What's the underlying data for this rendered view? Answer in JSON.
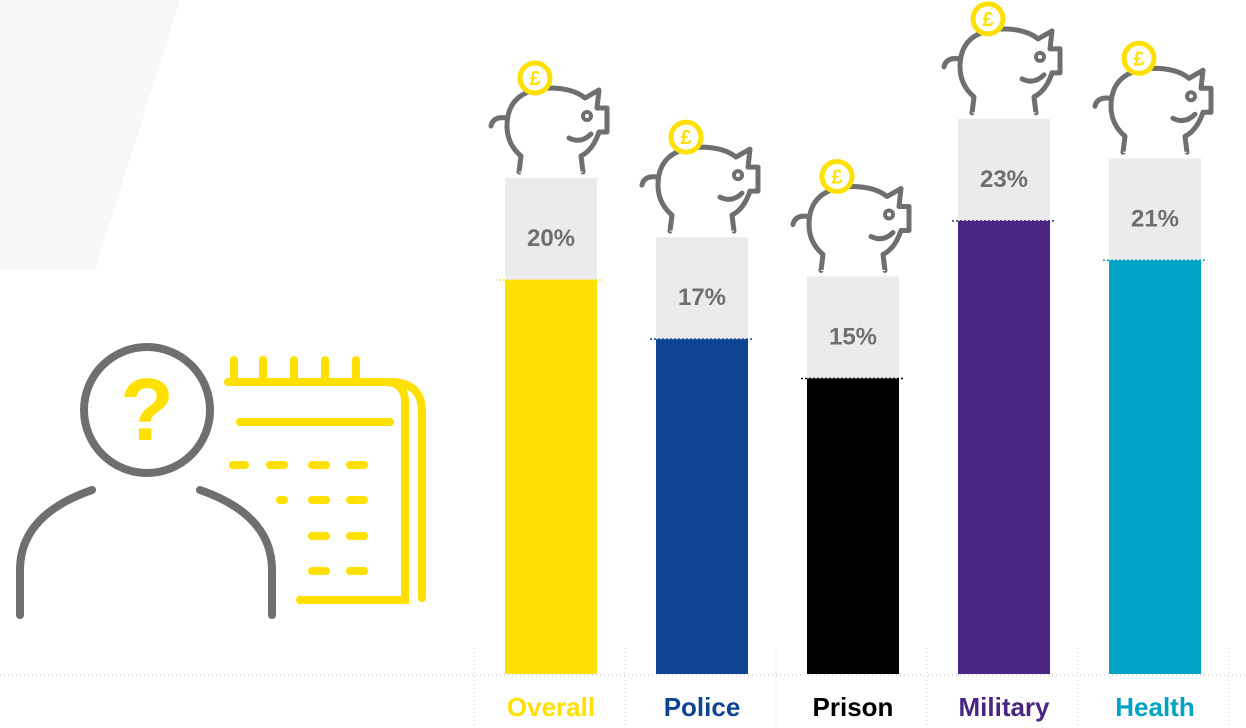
{
  "chart_data": {
    "type": "bar",
    "categories": [
      "Overall",
      "Police",
      "Prison",
      "Military",
      "Health"
    ],
    "values": [
      20,
      17,
      15,
      23,
      21
    ],
    "value_labels": [
      "20%",
      "17%",
      "15%",
      "23%",
      "21%"
    ],
    "colors": [
      "#FFE000",
      "#0F4492",
      "#000000",
      "#4A2683",
      "#00A3C4"
    ],
    "label_colors": [
      "#FFE000",
      "#0F4492",
      "#000000",
      "#4A2683",
      "#00A3C4"
    ],
    "grid": false
  },
  "decor": {
    "coin_symbol": "£",
    "question_mark": "?"
  },
  "colors": {
    "accent_yellow": "#FFE000",
    "icon_grey": "#6f6f6f",
    "label_box_grey": "#ebebeb",
    "baseline": "#bdbdbd"
  },
  "icons": [
    "person-question-icon",
    "calendar-icon",
    "piggy-bank-icon",
    "pound-coin-icon"
  ]
}
